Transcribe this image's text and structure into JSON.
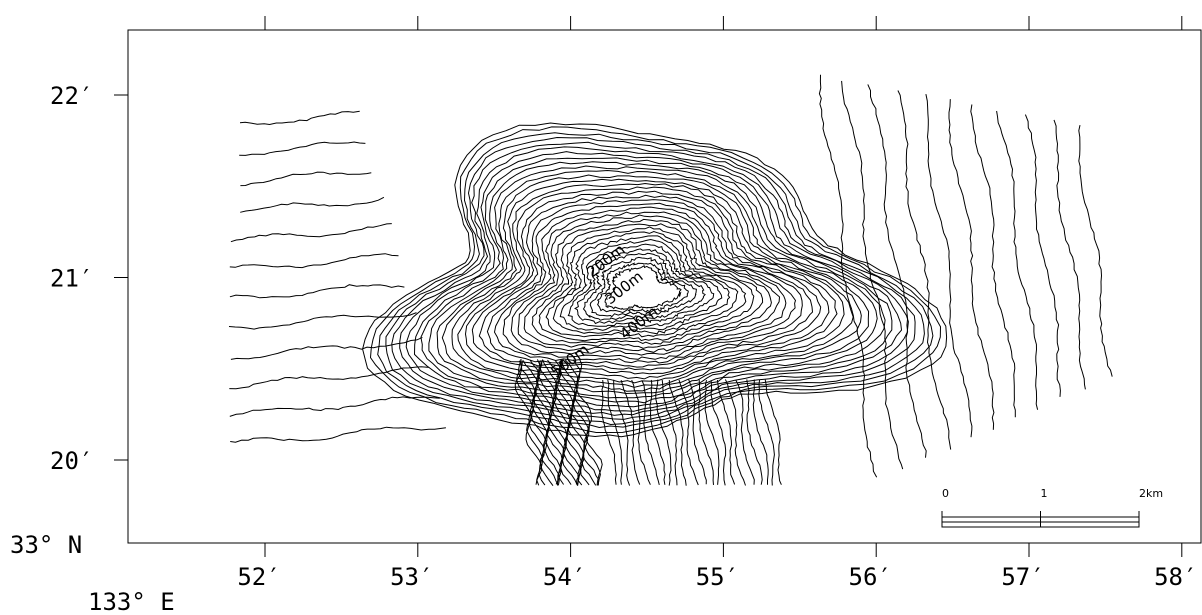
{
  "map": {
    "x_axis": {
      "ticks": [
        {
          "value": 52,
          "label": "52′"
        },
        {
          "value": 53,
          "label": "53′"
        },
        {
          "value": 54,
          "label": "54′"
        },
        {
          "value": 55,
          "label": "55′"
        },
        {
          "value": 56,
          "label": "56′"
        },
        {
          "value": 57,
          "label": "57′"
        },
        {
          "value": 58,
          "label": "58′"
        }
      ],
      "origin_label": "133° E"
    },
    "y_axis": {
      "ticks": [
        {
          "value": 22,
          "label": "22′"
        },
        {
          "value": 21,
          "label": "21′"
        },
        {
          "value": 20,
          "label": "20′"
        }
      ],
      "origin_label": "33° N"
    },
    "contour_labels": [
      "200m",
      "300m",
      "400m",
      "500m"
    ],
    "scale_bar": {
      "ticks": [
        {
          "value": 0,
          "label": "0"
        },
        {
          "value": 1,
          "label": "1"
        },
        {
          "value": 2,
          "label": "2km"
        }
      ]
    }
  }
}
